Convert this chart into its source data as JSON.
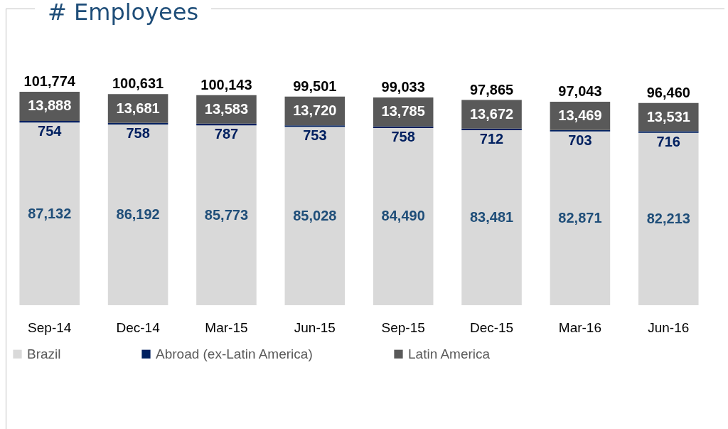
{
  "chart_data": {
    "type": "bar",
    "title": "# Employees",
    "stacked": true,
    "legend": "bottom",
    "grid": false,
    "categories": [
      "Sep-14",
      "Dec-14",
      "Mar-15",
      "Jun-15",
      "Sep-15",
      "Dec-15",
      "Mar-16",
      "Jun-16"
    ],
    "series": [
      {
        "name": "Brazil",
        "color": "#d9d9d9",
        "values": [
          87132,
          86192,
          85773,
          85028,
          84490,
          83481,
          82871,
          82213
        ],
        "value_labels": [
          "87,132",
          "86,192",
          "85,773",
          "85,028",
          "84,490",
          "83,481",
          "82,871",
          "82,213"
        ]
      },
      {
        "name": "Abroad (ex-Latin America)",
        "color": "#002060",
        "values": [
          754,
          758,
          787,
          753,
          758,
          712,
          703,
          716
        ],
        "value_labels": [
          "754",
          "758",
          "787",
          "753",
          "758",
          "712",
          "703",
          "716"
        ]
      },
      {
        "name": "Latin America",
        "color": "#595959",
        "values": [
          13888,
          13681,
          13583,
          13720,
          13785,
          13672,
          13469,
          13531
        ],
        "value_labels": [
          "13,888",
          "13,681",
          "13,583",
          "13,720",
          "13,785",
          "13,672",
          "13,469",
          "13,531"
        ]
      }
    ],
    "totals": [
      "101,774",
      "100,631",
      "100,143",
      "99,501",
      "99,033",
      "97,865",
      "97,043",
      "96,460"
    ]
  }
}
